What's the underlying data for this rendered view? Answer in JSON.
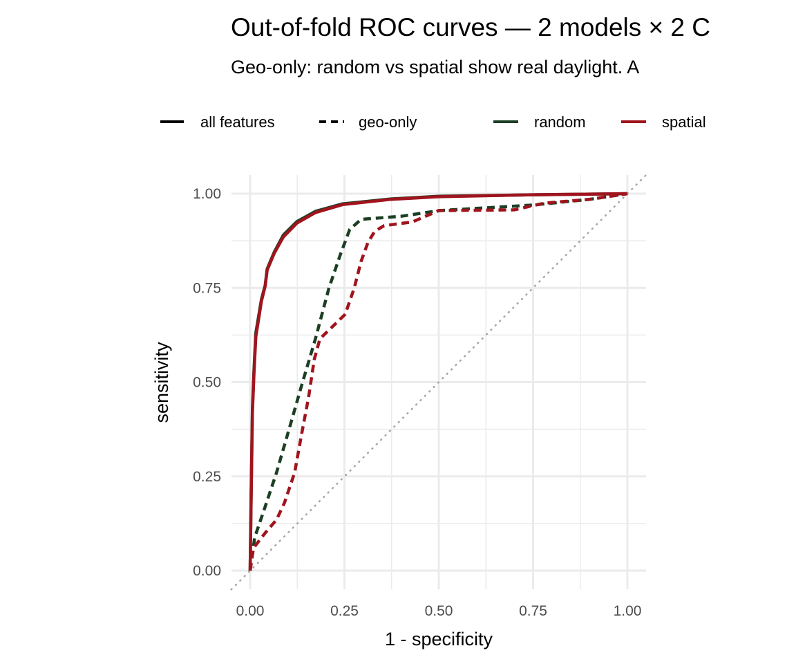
{
  "chart_data": {
    "type": "line",
    "title": "Out-of-fold ROC curves — 2 models × 2 C",
    "subtitle": "Geo-only: random vs spatial show real daylight. A",
    "xlabel": "1 - specificity",
    "ylabel": "sensitivity",
    "xlim": [
      0,
      1
    ],
    "ylim": [
      0,
      1
    ],
    "x_ticks": [
      "0.00",
      "0.25",
      "0.50",
      "0.75",
      "1.00"
    ],
    "y_ticks": [
      "0.00",
      "0.25",
      "0.50",
      "0.75",
      "1.00"
    ],
    "grid": true,
    "legend_position": "top",
    "legend": {
      "linetype": [
        {
          "label": "all features",
          "dash": "solid"
        },
        {
          "label": "geo-only",
          "dash": "dashed"
        }
      ],
      "color": [
        {
          "label": "random",
          "color": "#1C3F24"
        },
        {
          "label": "spatial",
          "color": "#A0141E"
        }
      ]
    },
    "reference_line": {
      "from": [
        0,
        0
      ],
      "to": [
        1,
        1
      ],
      "color": "#A6A6A6",
      "dash": "dotted"
    },
    "series": [
      {
        "features": "all features",
        "cv": "random",
        "color": "#1C3F24",
        "dash": "solid",
        "x": [
          0,
          0.003,
          0.006,
          0.01,
          0.015,
          0.03,
          0.04,
          0.045,
          0.064,
          0.088,
          0.124,
          0.173,
          0.245,
          0.373,
          0.5,
          0.75,
          1
        ],
        "y": [
          0,
          0.22,
          0.43,
          0.53,
          0.63,
          0.72,
          0.757,
          0.8,
          0.845,
          0.89,
          0.926,
          0.953,
          0.973,
          0.986,
          0.993,
          0.997,
          1
        ]
      },
      {
        "features": "geo-only",
        "cv": "random",
        "color": "#1C3F24",
        "dash": "dashed",
        "x": [
          0,
          0.012,
          0.04,
          0.07,
          0.106,
          0.136,
          0.173,
          0.209,
          0.239,
          0.264,
          0.294,
          0.4,
          0.5,
          0.75,
          0.9,
          1
        ],
        "y": [
          0,
          0.088,
          0.17,
          0.26,
          0.385,
          0.49,
          0.615,
          0.75,
          0.838,
          0.905,
          0.932,
          0.94,
          0.955,
          0.97,
          0.985,
          1
        ]
      },
      {
        "features": "all features",
        "cv": "spatial",
        "color": "#A0141E",
        "dash": "solid",
        "x": [
          0,
          0.003,
          0.006,
          0.01,
          0.015,
          0.03,
          0.04,
          0.045,
          0.064,
          0.088,
          0.124,
          0.173,
          0.245,
          0.373,
          0.5,
          0.75,
          1
        ],
        "y": [
          0,
          0.21,
          0.42,
          0.52,
          0.62,
          0.715,
          0.755,
          0.797,
          0.842,
          0.885,
          0.922,
          0.95,
          0.971,
          0.985,
          0.992,
          0.997,
          1
        ]
      },
      {
        "features": "geo-only",
        "cv": "spatial",
        "color": "#A0141E",
        "dash": "dashed",
        "x": [
          0,
          0.009,
          0.04,
          0.07,
          0.091,
          0.118,
          0.136,
          0.155,
          0.17,
          0.185,
          0.252,
          0.276,
          0.294,
          0.312,
          0.33,
          0.355,
          0.43,
          0.5,
          0.7,
          0.78,
          0.9,
          1
        ],
        "y": [
          0,
          0.06,
          0.1,
          0.135,
          0.18,
          0.26,
          0.36,
          0.46,
          0.56,
          0.615,
          0.68,
          0.75,
          0.82,
          0.87,
          0.9,
          0.915,
          0.925,
          0.955,
          0.957,
          0.975,
          0.985,
          1
        ]
      }
    ]
  }
}
